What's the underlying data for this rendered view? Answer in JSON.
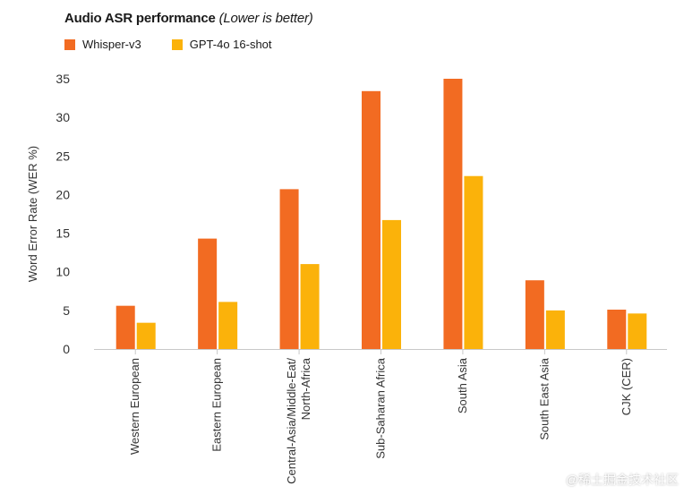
{
  "chart_data": {
    "type": "bar",
    "title": "Audio ASR performance",
    "subtitle": "(Lower is better)",
    "ylabel": "Word Error Rate (WER %)",
    "xlabel": "",
    "ylim": [
      0,
      35
    ],
    "yticks": [
      0,
      5,
      10,
      15,
      20,
      25,
      30,
      35
    ],
    "grid": false,
    "legend_position": "top-left",
    "categories": [
      "Western European",
      "Eastern European",
      "Central-Asia/Middle-Eat/\nNorth-Africa",
      "Sub-Saharan Africa",
      "South Asia",
      "South East Asia",
      "CJK (CER)"
    ],
    "series": [
      {
        "name": "Whisper-v3",
        "color": "#f26b22",
        "values": [
          5.6,
          14.3,
          20.7,
          33.4,
          35.0,
          8.9,
          5.1
        ]
      },
      {
        "name": "GPT-4o 16-shot",
        "color": "#fbb20a",
        "values": [
          3.4,
          6.1,
          11.0,
          16.7,
          22.4,
          5.0,
          4.6
        ]
      }
    ]
  },
  "watermark": "@稀土掘金技术社区"
}
